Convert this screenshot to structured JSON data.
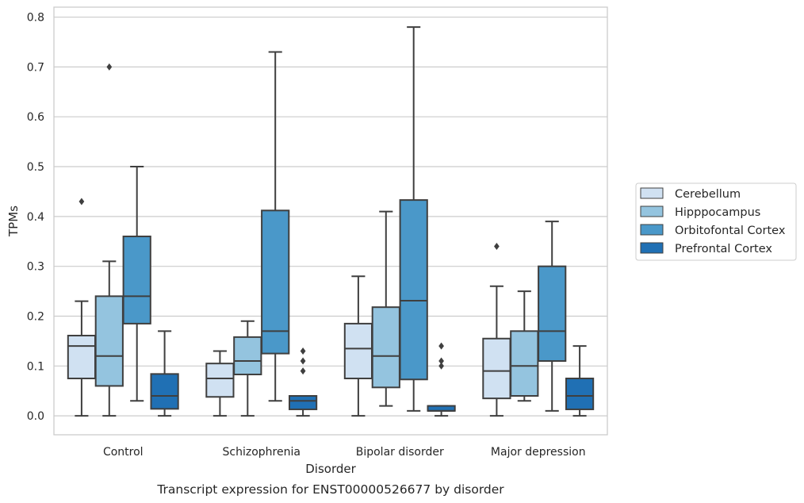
{
  "chart_data": {
    "type": "box",
    "caption": "Transcript expression for ENST00000526677 by disorder",
    "xlabel": "Disorder",
    "ylabel": "TPMs",
    "ylim": [
      -0.038,
      0.82
    ],
    "yticks": [
      0.0,
      0.1,
      0.2,
      0.3,
      0.4,
      0.5,
      0.6,
      0.7,
      0.8
    ],
    "ytick_labels": [
      "0.0",
      "0.1",
      "0.2",
      "0.3",
      "0.4",
      "0.5",
      "0.6",
      "0.7",
      "0.8"
    ],
    "grid": "horizontal",
    "legend_position": "right",
    "categories": [
      "Control",
      "Schizophrenia",
      "Bipolar disorder",
      "Major depression"
    ],
    "series": [
      {
        "name": "Cerebellum",
        "color": "#d0e1f2",
        "boxes": [
          {
            "whislo": 0.0,
            "q1": 0.075,
            "med": 0.14,
            "q3": 0.161,
            "whishi": 0.23,
            "fliers": [
              0.43
            ]
          },
          {
            "whislo": 0.0,
            "q1": 0.038,
            "med": 0.075,
            "q3": 0.105,
            "whishi": 0.13,
            "fliers": []
          },
          {
            "whislo": 0.0,
            "q1": 0.075,
            "med": 0.135,
            "q3": 0.185,
            "whishi": 0.28,
            "fliers": []
          },
          {
            "whislo": 0.0,
            "q1": 0.035,
            "med": 0.09,
            "q3": 0.155,
            "whishi": 0.26,
            "fliers": [
              0.34
            ]
          }
        ]
      },
      {
        "name": "Hipppocampus",
        "color": "#94c4df",
        "boxes": [
          {
            "whislo": 0.0,
            "q1": 0.06,
            "med": 0.12,
            "q3": 0.24,
            "whishi": 0.31,
            "fliers": [
              0.7
            ]
          },
          {
            "whislo": 0.0,
            "q1": 0.083,
            "med": 0.11,
            "q3": 0.158,
            "whishi": 0.19,
            "fliers": []
          },
          {
            "whislo": 0.02,
            "q1": 0.057,
            "med": 0.12,
            "q3": 0.218,
            "whishi": 0.41,
            "fliers": []
          },
          {
            "whislo": 0.03,
            "q1": 0.04,
            "med": 0.1,
            "q3": 0.17,
            "whishi": 0.25,
            "fliers": []
          }
        ]
      },
      {
        "name": "Orbitofontal Cortex",
        "color": "#4a98c9",
        "boxes": [
          {
            "whislo": 0.03,
            "q1": 0.185,
            "med": 0.24,
            "q3": 0.36,
            "whishi": 0.5,
            "fliers": []
          },
          {
            "whislo": 0.03,
            "q1": 0.125,
            "med": 0.17,
            "q3": 0.412,
            "whishi": 0.73,
            "fliers": []
          },
          {
            "whislo": 0.01,
            "q1": 0.073,
            "med": 0.231,
            "q3": 0.433,
            "whishi": 0.78,
            "fliers": []
          },
          {
            "whislo": 0.01,
            "q1": 0.11,
            "med": 0.17,
            "q3": 0.3,
            "whishi": 0.39,
            "fliers": []
          }
        ]
      },
      {
        "name": "Prefrontal Cortex",
        "color": "#2070b4",
        "boxes": [
          {
            "whislo": 0.0,
            "q1": 0.014,
            "med": 0.04,
            "q3": 0.084,
            "whishi": 0.17,
            "fliers": []
          },
          {
            "whislo": 0.0,
            "q1": 0.013,
            "med": 0.03,
            "q3": 0.04,
            "whishi": 0.04,
            "fliers": [
              0.09,
              0.11,
              0.13
            ]
          },
          {
            "whislo": 0.0,
            "q1": 0.01,
            "med": 0.01,
            "q3": 0.02,
            "whishi": 0.02,
            "fliers": [
              0.1,
              0.11,
              0.14
            ]
          },
          {
            "whislo": 0.0,
            "q1": 0.013,
            "med": 0.04,
            "q3": 0.075,
            "whishi": 0.14,
            "fliers": []
          }
        ]
      }
    ]
  }
}
